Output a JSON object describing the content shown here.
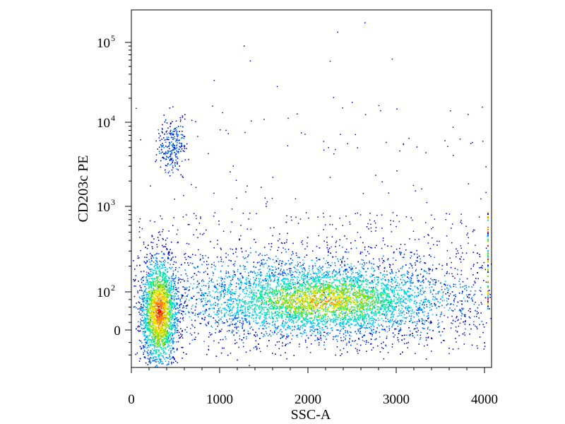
{
  "chart_data": {
    "type": "scatter",
    "style": "density-colored dot plot",
    "xlabel": "SSC-A",
    "ylabel": "CD203c PE",
    "x_ticks": [
      "0",
      "1000",
      "2000",
      "3000",
      "4000"
    ],
    "x_tick_values": [
      0,
      1000,
      2000,
      3000,
      4000
    ],
    "y_ticks": [
      {
        "base": "0",
        "exp": ""
      },
      {
        "base": "10",
        "exp": "2"
      },
      {
        "base": "10",
        "exp": "3"
      },
      {
        "base": "10",
        "exp": "4"
      },
      {
        "base": "10",
        "exp": "5"
      }
    ],
    "y_tick_values": [
      0,
      100,
      1000,
      10000,
      100000
    ],
    "xlim": [
      0,
      4100
    ],
    "y_scale": "biexponential (linear near 0, log above ~100)",
    "grid": false,
    "legend": "none",
    "density_colors": [
      "#0000c8",
      "#0070ff",
      "#00c8ff",
      "#00e8a0",
      "#7ee000",
      "#f0e000",
      "#ff8000",
      "#e01000"
    ],
    "populations": [
      {
        "description": "low-SSC dense cluster",
        "x_center": 320,
        "y_center": 50,
        "density": "highest"
      },
      {
        "description": "broad SSC cluster",
        "x_center": 2250,
        "y_center": 80,
        "density": "high"
      },
      {
        "description": "CD203c high cluster",
        "x_center": 450,
        "y_center": 5000,
        "density": "low"
      }
    ]
  }
}
